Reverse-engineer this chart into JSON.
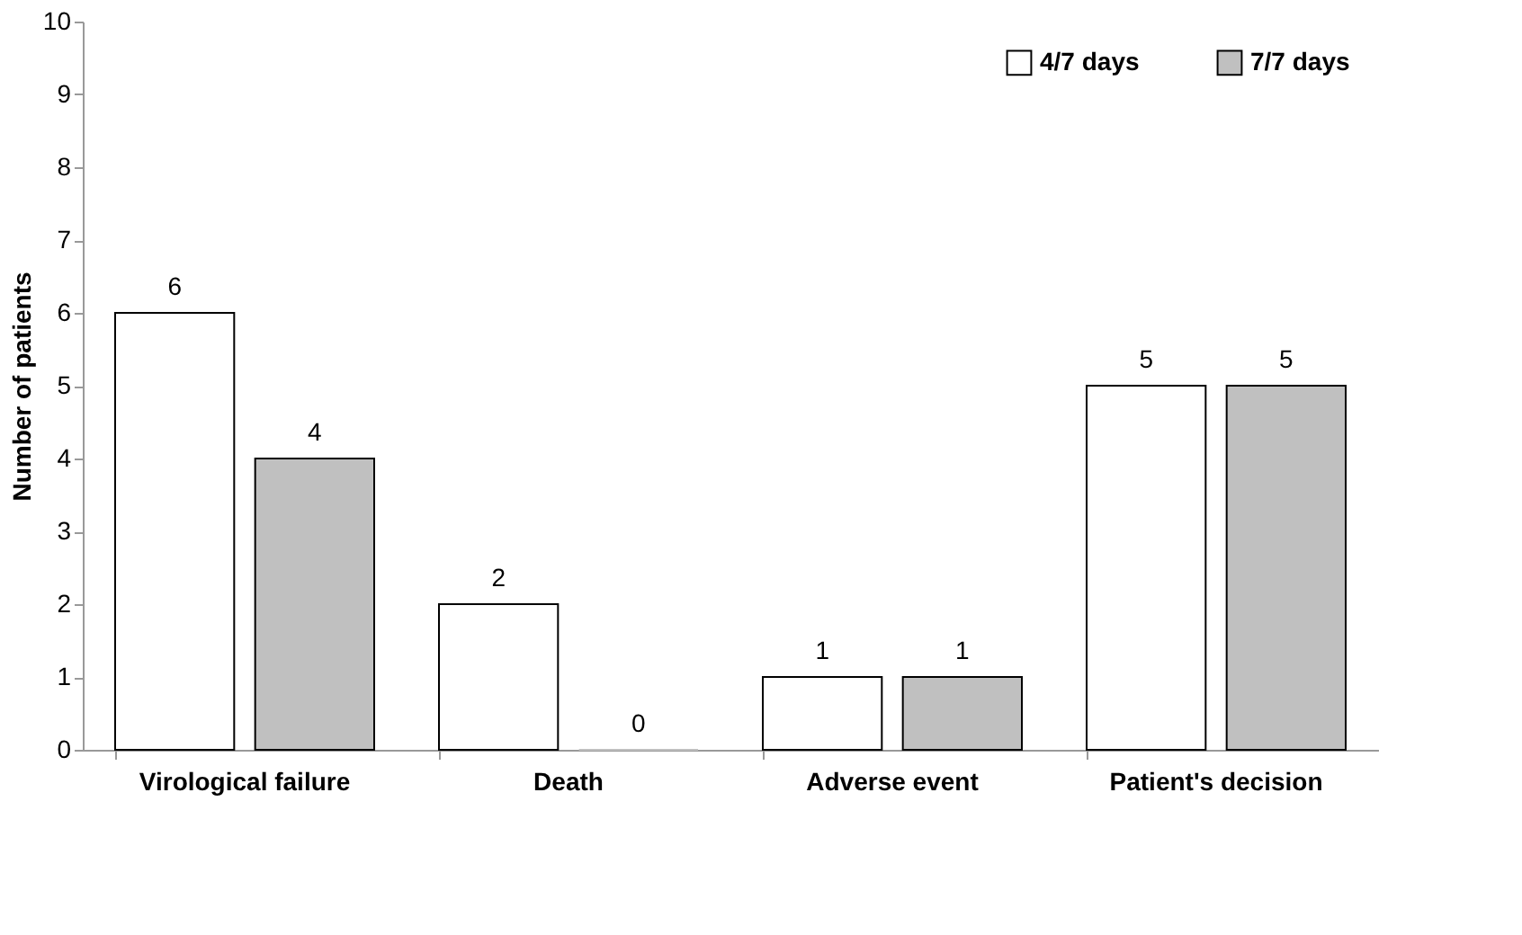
{
  "chart_data": {
    "type": "bar",
    "ylabel": "Number of patients",
    "categories": [
      "Virological failure",
      "Death",
      "Adverse event",
      "Patient's decision"
    ],
    "series": [
      {
        "name": "4/7 days",
        "color": "#ffffff",
        "values": [
          6,
          2,
          1,
          5
        ]
      },
      {
        "name": "7/7 days",
        "color": "#c0c0c0",
        "values": [
          4,
          0,
          1,
          5
        ]
      }
    ],
    "ylim": [
      0,
      10
    ],
    "yticks": [
      0,
      1,
      2,
      3,
      4,
      5,
      6,
      7,
      8,
      9,
      10
    ],
    "grid": false,
    "legend": "top right",
    "data_labels": true
  }
}
